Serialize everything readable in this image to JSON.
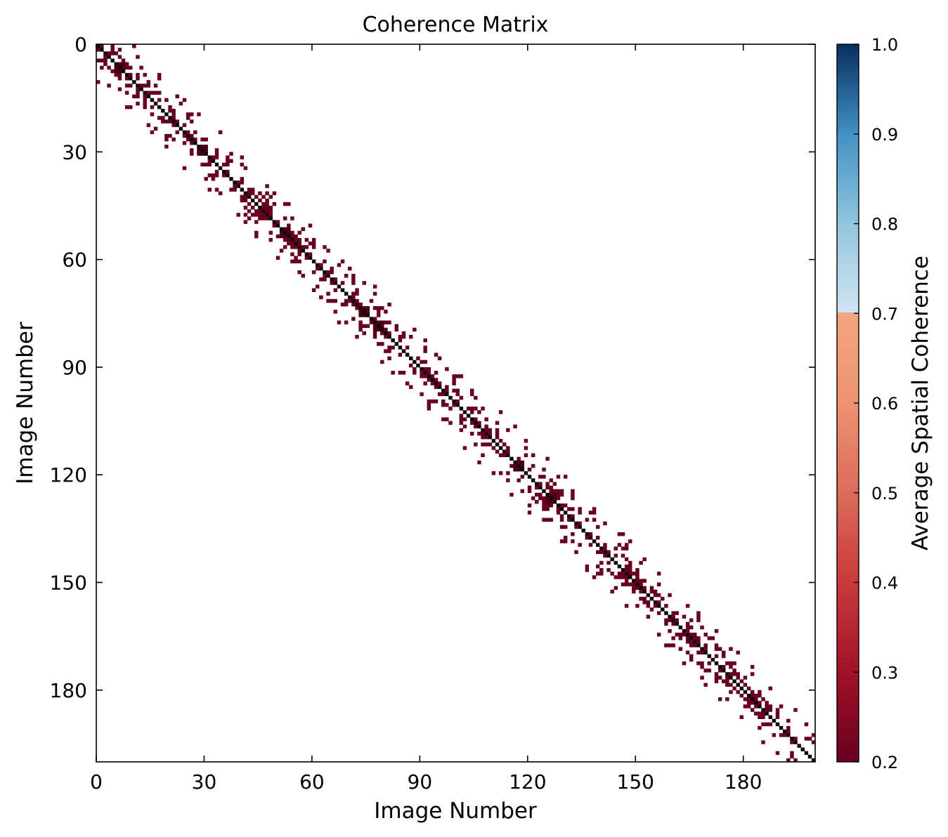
{
  "chart_data": {
    "type": "heatmap",
    "title": "Coherence Matrix",
    "xlabel": "Image Number",
    "ylabel": "Image Number",
    "colorbar_label": "Average Spatial Coherence",
    "n_images": 200,
    "xlim": [
      0,
      200
    ],
    "ylim": [
      200,
      0
    ],
    "x_ticks": [
      0,
      30,
      60,
      90,
      120,
      150,
      180
    ],
    "y_ticks": [
      0,
      30,
      60,
      90,
      120,
      150,
      180
    ],
    "colorbar_range": [
      0.2,
      1.0
    ],
    "colorbar_ticks": [
      "0.2",
      "0.3",
      "0.4",
      "0.5",
      "0.6",
      "0.7",
      "0.8",
      "0.9",
      "1.0"
    ],
    "colorbar_split_value": 0.7,
    "cmap": "RdBu",
    "diagonal_value": 1.0,
    "offdiagonal_typical_value": 0.2,
    "band_halfwidth": 10,
    "colors": {
      "cell": "#67001f",
      "diagonal": "#0a0a0a",
      "dark_cluster": "#4a0012"
    },
    "dark_clusters": [
      {
        "x": 6,
        "y": 6
      },
      {
        "x": 29,
        "y": 29
      },
      {
        "x": 52,
        "y": 52
      },
      {
        "x": 74,
        "y": 74
      },
      {
        "x": 78,
        "y": 78
      },
      {
        "x": 117,
        "y": 117
      },
      {
        "x": 126,
        "y": 126
      }
    ]
  }
}
